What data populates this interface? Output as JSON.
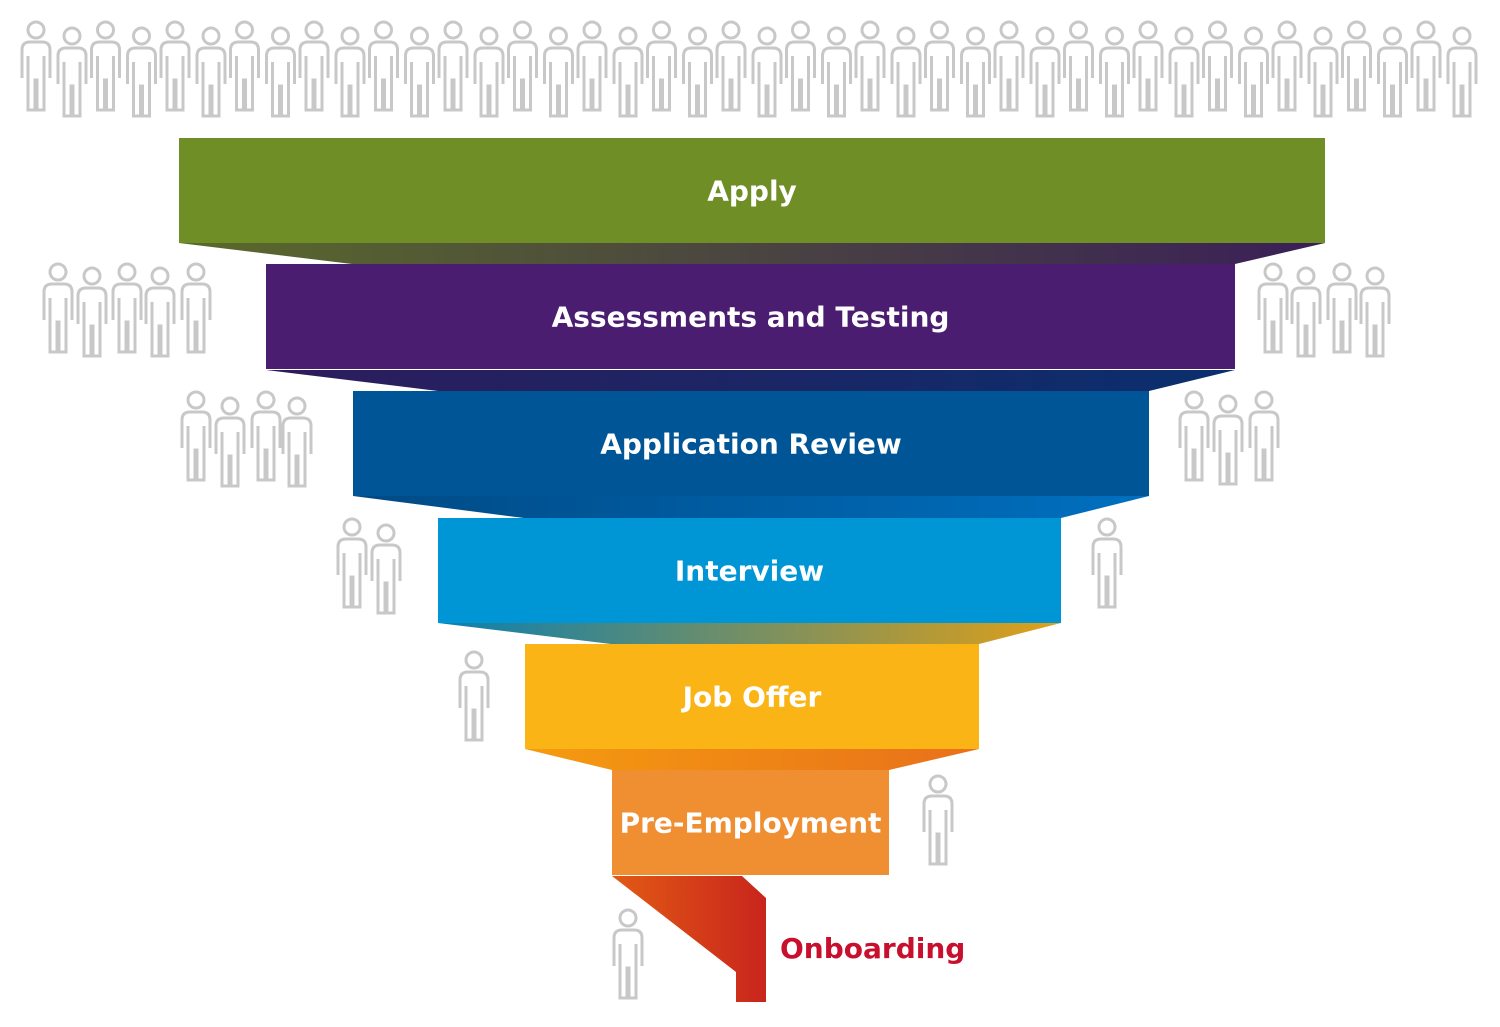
{
  "funnel": {
    "stages": [
      {
        "label": "Apply",
        "color": "#6f8e26"
      },
      {
        "label": "Assessments and Testing",
        "color": "#4a1d70"
      },
      {
        "label": "Application Review",
        "color": "#005596"
      },
      {
        "label": "Interview",
        "color": "#0096d6"
      },
      {
        "label": "Job Offer",
        "color": "#fbb415"
      },
      {
        "label": "Pre-Employment",
        "color": "#f08e32"
      }
    ],
    "final_stage": {
      "label": "Onboarding",
      "color": "#c8102e",
      "ribbon_color": "#c3281a"
    },
    "people_color": "#c8c8c8",
    "label_color": "#ffffff"
  }
}
